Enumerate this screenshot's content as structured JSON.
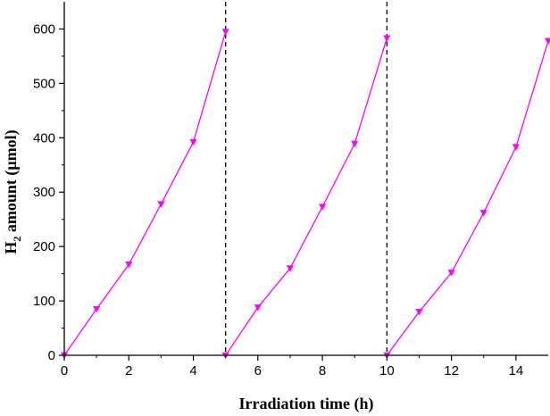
{
  "chart_data": {
    "type": "line",
    "xlabel": "Irradiation time (h)",
    "ylabel": {
      "prefix": "H",
      "subscript": "2",
      "suffix": " amount (μmol)"
    },
    "xlim": [
      0,
      15
    ],
    "ylim": [
      0,
      650
    ],
    "xticks": [
      0,
      2,
      4,
      6,
      8,
      10,
      12,
      14
    ],
    "yticks": [
      0,
      100,
      200,
      300,
      400,
      500,
      600
    ],
    "grid": false,
    "legend": "none",
    "vlines": [
      5,
      10
    ],
    "series": [
      {
        "color": "#ff00ff",
        "marker": "triangle-down",
        "segments": [
          [
            [
              0,
              0
            ],
            [
              1,
              85
            ],
            [
              2,
              167
            ],
            [
              3,
              278
            ],
            [
              4,
              392
            ],
            [
              5,
              595
            ]
          ],
          [
            [
              5,
              0
            ],
            [
              6,
              88
            ],
            [
              7,
              160
            ],
            [
              8,
              273
            ],
            [
              9,
              389
            ],
            [
              10,
              583
            ]
          ],
          [
            [
              10,
              0
            ],
            [
              11,
              80
            ],
            [
              12,
              152
            ],
            [
              13,
              262
            ],
            [
              14,
              383
            ],
            [
              15,
              578
            ]
          ]
        ]
      }
    ]
  }
}
